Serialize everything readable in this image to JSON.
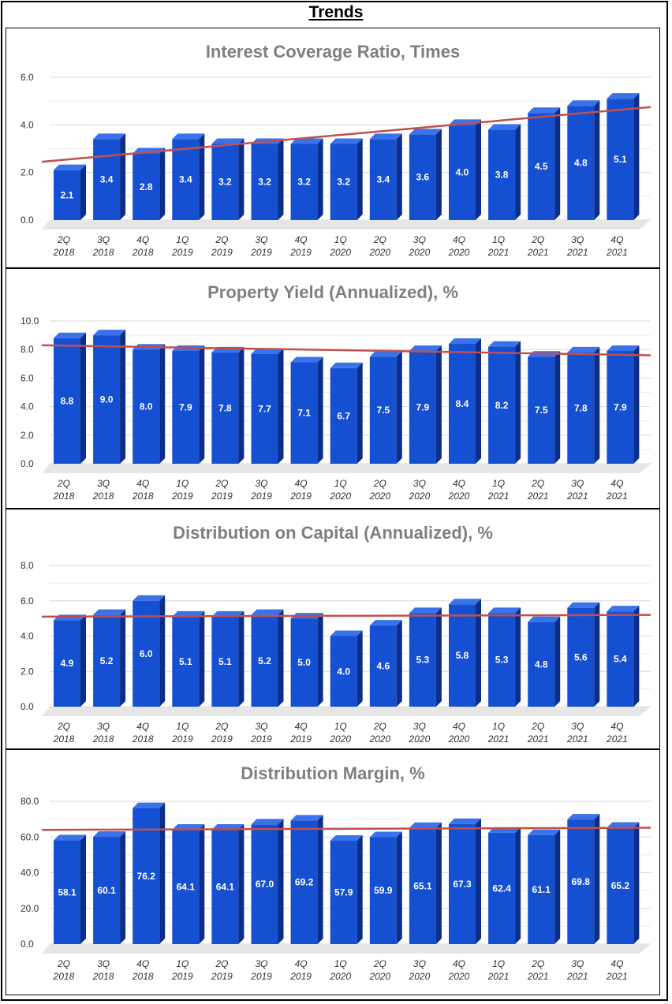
{
  "page": {
    "title": "Trends"
  },
  "chart_data": [
    {
      "type": "bar",
      "title": "Interest Coverage Ratio, Times",
      "categories": [
        "2Q 2018",
        "3Q 2018",
        "4Q 2018",
        "1Q 2019",
        "2Q 2019",
        "3Q 2019",
        "4Q 2019",
        "1Q 2020",
        "2Q 2020",
        "3Q 2020",
        "4Q 2020",
        "1Q 2021",
        "2Q 2021",
        "3Q 2021",
        "4Q 2021"
      ],
      "values": [
        2.1,
        3.4,
        2.8,
        3.4,
        3.2,
        3.2,
        3.2,
        3.2,
        3.4,
        3.6,
        4.0,
        3.8,
        4.5,
        4.8,
        5.1
      ],
      "value_labels": [
        "2.1",
        "3.4",
        "2.8",
        "3.4",
        "3.2",
        "3.2",
        "3.2",
        "3.2",
        "3.4",
        "3.6",
        "4.0",
        "3.8",
        "4.5",
        "4.8",
        "5.1"
      ],
      "ylim": [
        0,
        6
      ],
      "yticks": [
        "0.0",
        "2.0",
        "4.0",
        "6.0"
      ],
      "trendline": {
        "start": 2.45,
        "end": 4.75
      }
    },
    {
      "type": "bar",
      "title": "Property Yield (Annualized), %",
      "categories": [
        "2Q 2018",
        "3Q 2018",
        "4Q 2018",
        "1Q 2019",
        "2Q 2019",
        "3Q 2019",
        "4Q 2019",
        "1Q 2020",
        "2Q 2020",
        "3Q 2020",
        "4Q 2020",
        "1Q 2021",
        "2Q 2021",
        "3Q 2021",
        "4Q 2021"
      ],
      "values": [
        8.8,
        9.0,
        8.0,
        7.9,
        7.8,
        7.7,
        7.1,
        6.7,
        7.5,
        7.9,
        8.4,
        8.2,
        7.5,
        7.8,
        7.9
      ],
      "value_labels": [
        "8.8",
        "9.0",
        "8.0",
        "7.9",
        "7.8",
        "7.7",
        "7.1",
        "6.7",
        "7.5",
        "7.9",
        "8.4",
        "8.2",
        "7.5",
        "7.8",
        "7.9"
      ],
      "ylim": [
        0,
        10
      ],
      "yticks": [
        "0.0",
        "2.0",
        "4.0",
        "6.0",
        "8.0",
        "10.0"
      ],
      "trendline": {
        "start": 8.3,
        "end": 7.6
      }
    },
    {
      "type": "bar",
      "title": "Distribution on Capital (Annualized), %",
      "categories": [
        "2Q 2018",
        "3Q 2018",
        "4Q 2018",
        "1Q 2019",
        "2Q 2019",
        "3Q 2019",
        "4Q 2019",
        "1Q 2020",
        "2Q 2020",
        "3Q 2020",
        "4Q 2020",
        "1Q 2021",
        "2Q 2021",
        "3Q 2021",
        "4Q 2021"
      ],
      "values": [
        4.9,
        5.2,
        6.0,
        5.1,
        5.1,
        5.2,
        5.0,
        4.0,
        4.6,
        5.3,
        5.8,
        5.3,
        4.8,
        5.6,
        5.4
      ],
      "value_labels": [
        "4.9",
        "5.2",
        "6.0",
        "5.1",
        "5.1",
        "5.2",
        "5.0",
        "4.0",
        "4.6",
        "5.3",
        "5.8",
        "5.3",
        "4.8",
        "5.6",
        "5.4"
      ],
      "ylim": [
        0,
        8
      ],
      "yticks": [
        "0.0",
        "2.0",
        "4.0",
        "6.0",
        "8.0"
      ],
      "trendline": {
        "start": 5.1,
        "end": 5.2
      }
    },
    {
      "type": "bar",
      "title": "Distribution Margin, %",
      "categories": [
        "2Q 2018",
        "3Q 2018",
        "4Q 2018",
        "1Q 2019",
        "2Q 2019",
        "3Q 2019",
        "4Q 2019",
        "1Q 2020",
        "2Q 2020",
        "3Q 2020",
        "4Q 2020",
        "1Q 2021",
        "2Q 2021",
        "3Q 2021",
        "4Q 2021"
      ],
      "values": [
        58.1,
        60.1,
        76.2,
        64.1,
        64.1,
        67.0,
        69.2,
        57.9,
        59.9,
        65.1,
        67.3,
        62.4,
        61.1,
        69.8,
        65.2
      ],
      "value_labels": [
        "58.1",
        "60.1",
        "76.2",
        "64.1",
        "64.1",
        "67.0",
        "69.2",
        "57.9",
        "59.9",
        "65.1",
        "67.3",
        "62.4",
        "61.1",
        "69.8",
        "65.2"
      ],
      "ylim": [
        0,
        80
      ],
      "yticks": [
        "0.0",
        "20.0",
        "40.0",
        "60.0",
        "80.0"
      ],
      "trendline": {
        "start": 64.0,
        "end": 65.2
      }
    }
  ],
  "colors": {
    "bar_front": "#1550d2",
    "bar_top": "#3a72ea",
    "bar_side": "#0b2e8a",
    "trendline": "#c0504d",
    "title_text": "#7f7f7f",
    "axis_text": "#333333",
    "grid": "#d9d9d9",
    "floor": "#e6e6e6"
  }
}
